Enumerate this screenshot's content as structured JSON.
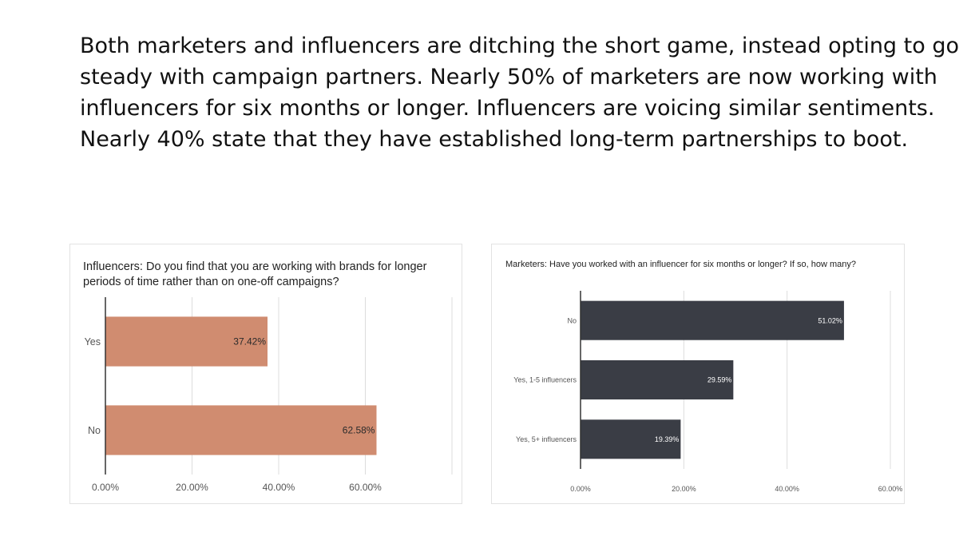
{
  "intro": {
    "lines": [
      "Both marketers and influencers are ditching the short game, instead opting to go",
      "steady with campaign partners. Nearly 50% of marketers are now working with",
      "influencers for six months or longer. Influencers are voicing similar sentiments.",
      "Nearly 40% state that they have established long-term partnerships to boot."
    ]
  },
  "colors": {
    "influencer_bar": "#d08c70",
    "marketer_bar": "#3a3d45",
    "grid": "#dcdcdc",
    "axis": "#333333",
    "tick_text": "#555555"
  },
  "chart_data": [
    {
      "type": "bar",
      "orientation": "horizontal",
      "title_lines": [
        "Influencers: Do you find that you are working with brands for longer",
        "periods of time rather than on one-off campaigns?"
      ],
      "categories": [
        "Yes",
        "No"
      ],
      "values": [
        37.42,
        62.58
      ],
      "data_labels": [
        "37.42%",
        "62.58%"
      ],
      "xlim": [
        0,
        80
      ],
      "xticks": [
        0,
        20,
        40,
        60
      ],
      "xtick_labels": [
        "0.00%",
        "20.00%",
        "40.00%",
        "60.00%"
      ],
      "grid": true,
      "legend": "none"
    },
    {
      "type": "bar",
      "orientation": "horizontal",
      "title_lines": [
        "Marketers: Have you worked with an influencer for six months or longer? If so, how many?"
      ],
      "categories": [
        "No",
        "Yes, 1-5 influencers",
        "Yes, 5+ influencers"
      ],
      "values": [
        51.02,
        29.59,
        19.39
      ],
      "data_labels": [
        "51.02%",
        "29.59%",
        "19.39%"
      ],
      "xlim": [
        0,
        60
      ],
      "xticks": [
        0,
        20,
        40,
        60
      ],
      "xtick_labels": [
        "0.00%",
        "20.00%",
        "40.00%",
        "60.00%"
      ],
      "grid": true,
      "legend": "none"
    }
  ]
}
